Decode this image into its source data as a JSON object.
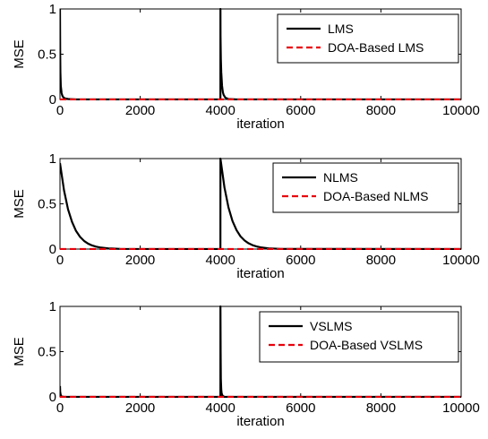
{
  "chart_data": [
    {
      "type": "line",
      "xlabel": "iteration",
      "ylabel": "MSE",
      "xlim": [
        0,
        10000
      ],
      "ylim": [
        0,
        1
      ],
      "xticks": [
        0,
        2000,
        4000,
        6000,
        8000,
        10000
      ],
      "yticks": [
        0,
        0.5,
        1
      ],
      "ytick_labels": [
        "0",
        "0.5",
        "1"
      ],
      "grid": false,
      "legend_position": "top-right",
      "series": [
        {
          "name": "LMS",
          "color": "#000000",
          "style": "solid",
          "x": [
            0,
            5,
            10,
            20,
            40,
            60,
            80,
            120,
            200,
            400,
            3999,
            4000,
            4002,
            4010,
            4020,
            4040,
            4060,
            4080,
            4120,
            4200,
            4400,
            10000
          ],
          "y": [
            1.0,
            0.52,
            0.3,
            0.15,
            0.07,
            0.04,
            0.025,
            0.012,
            0.005,
            0.0,
            0.0,
            1.0,
            0.7,
            0.45,
            0.3,
            0.15,
            0.08,
            0.05,
            0.02,
            0.005,
            0.0,
            0.0
          ]
        },
        {
          "name": "DOA-Based LMS",
          "color": "#e8000b",
          "style": "dashed",
          "x": [
            0,
            10000
          ],
          "y": [
            0.0,
            0.0
          ]
        }
      ]
    },
    {
      "type": "line",
      "xlabel": "iteration",
      "ylabel": "MSE",
      "xlim": [
        0,
        10000
      ],
      "ylim": [
        0,
        1
      ],
      "xticks": [
        0,
        2000,
        4000,
        6000,
        8000,
        10000
      ],
      "yticks": [
        0,
        0.5,
        1
      ],
      "ytick_labels": [
        "0",
        "0.5",
        "1"
      ],
      "grid": false,
      "legend_position": "top-right",
      "series": [
        {
          "name": "NLMS",
          "color": "#000000",
          "style": "solid",
          "x": [
            0,
            100,
            200,
            300,
            400,
            500,
            600,
            700,
            800,
            900,
            1000,
            1200,
            1500,
            3999,
            4000,
            4100,
            4200,
            4300,
            4400,
            4500,
            4600,
            4700,
            4800,
            4900,
            5000,
            5200,
            5500,
            10000
          ],
          "y": [
            0.95,
            0.65,
            0.44,
            0.3,
            0.2,
            0.135,
            0.09,
            0.06,
            0.04,
            0.027,
            0.018,
            0.008,
            0.002,
            0.0,
            1.0,
            0.68,
            0.46,
            0.31,
            0.21,
            0.14,
            0.095,
            0.064,
            0.043,
            0.029,
            0.019,
            0.008,
            0.002,
            0.0
          ]
        },
        {
          "name": "DOA-Based NLMS",
          "color": "#e8000b",
          "style": "dashed",
          "x": [
            0,
            10000
          ],
          "y": [
            0.0,
            0.0
          ]
        }
      ]
    },
    {
      "type": "line",
      "xlabel": "iteration",
      "ylabel": "MSE",
      "xlim": [
        0,
        10000
      ],
      "ylim": [
        0,
        1
      ],
      "xticks": [
        0,
        2000,
        4000,
        6000,
        8000,
        10000
      ],
      "yticks": [
        0,
        0.5,
        1
      ],
      "ytick_labels": [
        "0",
        "0.5",
        "1"
      ],
      "grid": false,
      "legend_position": "top-right",
      "series": [
        {
          "name": "VSLMS",
          "color": "#000000",
          "style": "solid",
          "x": [
            0,
            5,
            10,
            20,
            30,
            50,
            100,
            3999,
            4000,
            4005,
            4010,
            4020,
            4030,
            4050,
            4100,
            10000
          ],
          "y": [
            0.12,
            0.06,
            0.04,
            0.02,
            0.01,
            0.004,
            0.0,
            0.0,
            1.0,
            0.5,
            0.2,
            0.08,
            0.04,
            0.015,
            0.0,
            0.0
          ]
        },
        {
          "name": "DOA-Based VSLMS",
          "color": "#e8000b",
          "style": "dashed",
          "x": [
            0,
            10000
          ],
          "y": [
            0.0,
            0.0
          ]
        }
      ]
    }
  ]
}
